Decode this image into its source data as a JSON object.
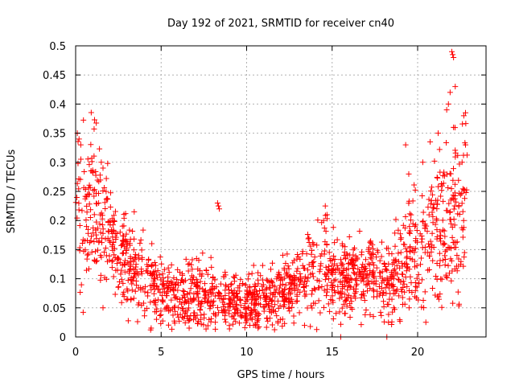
{
  "chart_data": {
    "type": "scatter",
    "title": "Day 192 of 2021, SRMTID for receiver cn40",
    "xlabel": "GPS time / hours",
    "ylabel": "SRMTID / TECUs",
    "xlim": [
      0,
      24
    ],
    "ylim": [
      0,
      0.5
    ],
    "xticks": [
      0,
      5,
      10,
      15,
      20
    ],
    "xtick_labels": [
      "0",
      "5",
      "10",
      "15",
      "20"
    ],
    "yticks": [
      0,
      0.05,
      0.1,
      0.15,
      0.2,
      0.25,
      0.3,
      0.35,
      0.4,
      0.45,
      0.5
    ],
    "ytick_labels": [
      "0",
      "0.05",
      "0.1",
      "0.15",
      "0.2",
      "0.25",
      "0.3",
      "0.35",
      "0.4",
      "0.45",
      "0.5"
    ],
    "grid": true,
    "marker": "+",
    "color": "#ff0000",
    "trend": {
      "x": [
        0,
        0.5,
        1,
        1.5,
        2,
        2.5,
        3,
        3.5,
        4,
        4.5,
        5,
        5.5,
        6,
        6.5,
        7,
        7.5,
        8,
        8.5,
        9,
        9.5,
        10,
        10.5,
        11,
        11.5,
        12,
        12.5,
        13,
        13.5,
        14,
        14.5,
        15,
        15.5,
        16,
        16.5,
        17,
        17.5,
        18,
        18.5,
        19,
        19.5,
        20,
        20.5,
        21,
        21.5,
        22,
        22.5
      ],
      "y": [
        0.23,
        0.22,
        0.22,
        0.21,
        0.18,
        0.14,
        0.12,
        0.11,
        0.1,
        0.09,
        0.08,
        0.07,
        0.07,
        0.075,
        0.08,
        0.075,
        0.07,
        0.07,
        0.065,
        0.065,
        0.06,
        0.065,
        0.07,
        0.07,
        0.075,
        0.08,
        0.09,
        0.1,
        0.11,
        0.12,
        0.11,
        0.1,
        0.1,
        0.1,
        0.105,
        0.11,
        0.1,
        0.1,
        0.12,
        0.14,
        0.16,
        0.18,
        0.2,
        0.18,
        0.2,
        0.23
      ],
      "spread": [
        0.07,
        0.07,
        0.06,
        0.06,
        0.05,
        0.04,
        0.04,
        0.035,
        0.035,
        0.035,
        0.03,
        0.025,
        0.025,
        0.03,
        0.03,
        0.03,
        0.03,
        0.03,
        0.025,
        0.025,
        0.025,
        0.025,
        0.025,
        0.025,
        0.03,
        0.03,
        0.03,
        0.035,
        0.04,
        0.04,
        0.035,
        0.035,
        0.035,
        0.035,
        0.035,
        0.035,
        0.035,
        0.035,
        0.04,
        0.05,
        0.06,
        0.06,
        0.07,
        0.06,
        0.07,
        0.08
      ]
    },
    "outliers": [
      {
        "x": 0.1,
        "y": 0.35
      },
      {
        "x": 0.2,
        "y": 0.34
      },
      {
        "x": 0.3,
        "y": 0.33
      },
      {
        "x": 1.5,
        "y": 0.3
      },
      {
        "x": 1.6,
        "y": 0.29
      },
      {
        "x": 8.3,
        "y": 0.23
      },
      {
        "x": 8.35,
        "y": 0.225
      },
      {
        "x": 8.4,
        "y": 0.22
      },
      {
        "x": 14.6,
        "y": 0.225
      },
      {
        "x": 14.7,
        "y": 0.21
      },
      {
        "x": 14.5,
        "y": 0.2
      },
      {
        "x": 15.5,
        "y": 0.0
      },
      {
        "x": 18.2,
        "y": 0.0
      },
      {
        "x": 22.0,
        "y": 0.49
      },
      {
        "x": 22.05,
        "y": 0.485
      },
      {
        "x": 22.1,
        "y": 0.48
      },
      {
        "x": 22.2,
        "y": 0.43
      },
      {
        "x": 21.9,
        "y": 0.42
      },
      {
        "x": 21.8,
        "y": 0.4
      },
      {
        "x": 21.7,
        "y": 0.39
      },
      {
        "x": 22.8,
        "y": 0.385
      },
      {
        "x": 22.7,
        "y": 0.38
      },
      {
        "x": 22.1,
        "y": 0.36
      },
      {
        "x": 21.2,
        "y": 0.35
      },
      {
        "x": 19.3,
        "y": 0.33
      },
      {
        "x": 22.8,
        "y": 0.33
      },
      {
        "x": 20.3,
        "y": 0.3
      },
      {
        "x": 22.6,
        "y": 0.3
      },
      {
        "x": 19.5,
        "y": 0.05
      },
      {
        "x": 18.6,
        "y": 0.05
      },
      {
        "x": 1.6,
        "y": 0.05
      },
      {
        "x": 10.4,
        "y": 0.02
      },
      {
        "x": 10.5,
        "y": 0.02
      }
    ]
  }
}
